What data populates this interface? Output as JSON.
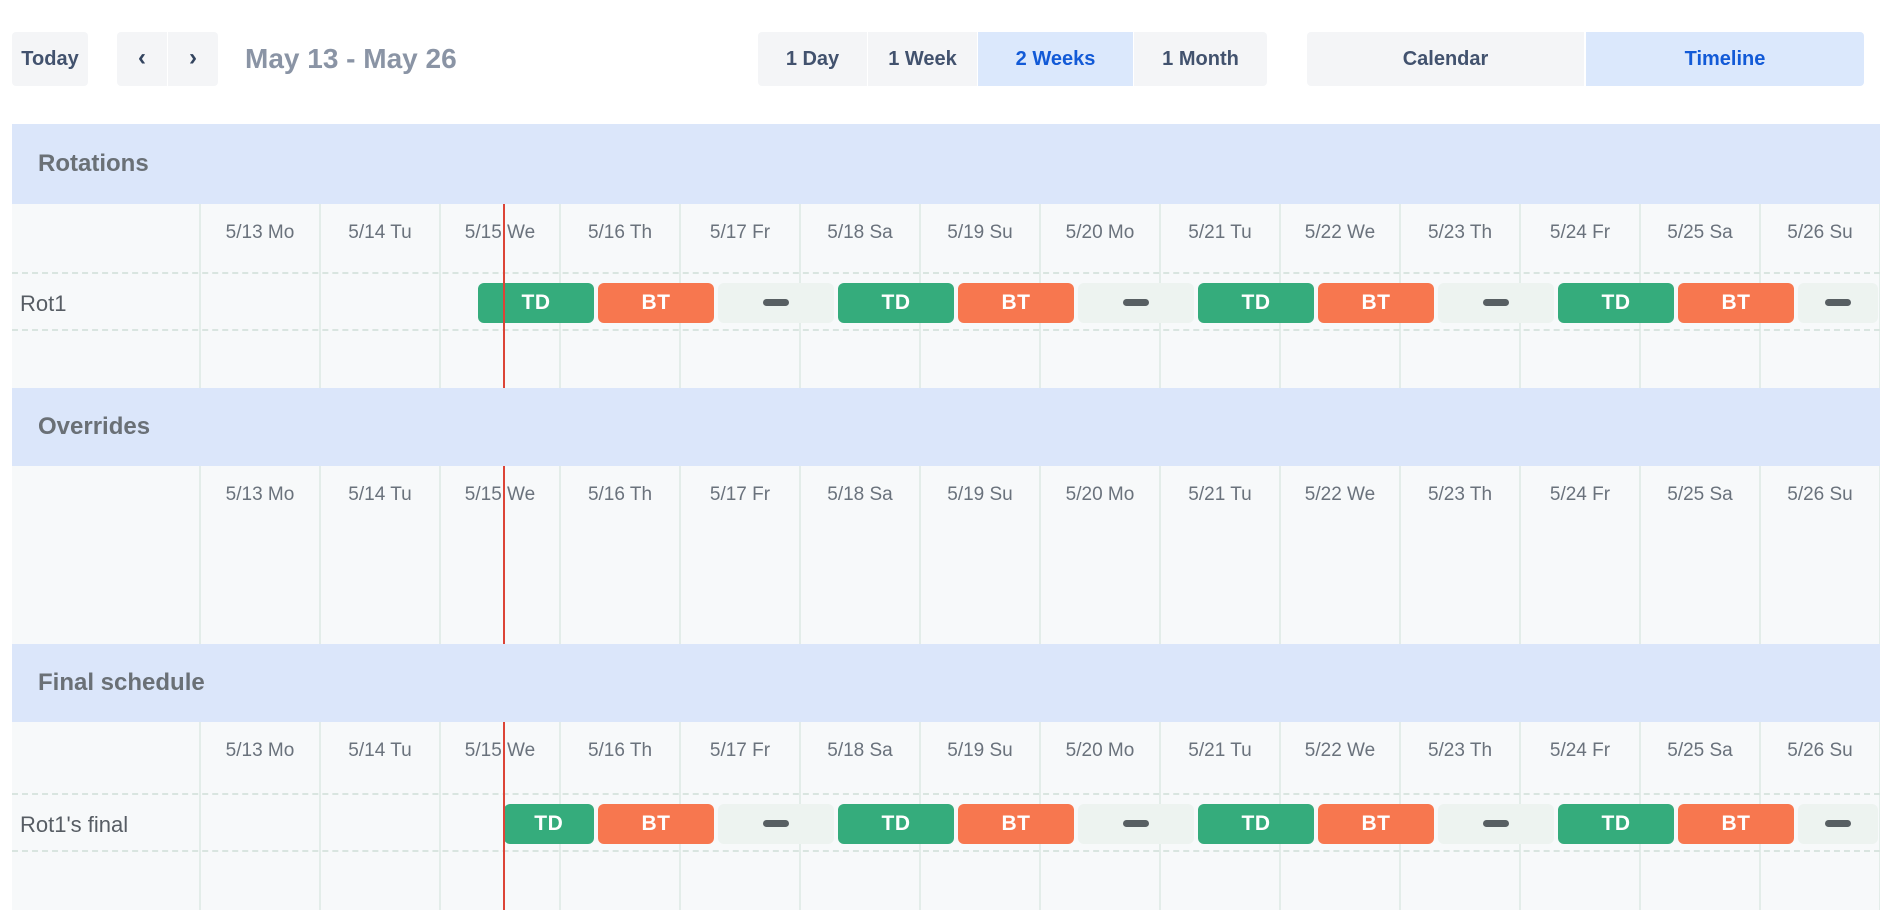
{
  "toolbar": {
    "today_label": "Today",
    "prev_icon": "‹",
    "next_icon": "›",
    "title": "May 13 - May 26",
    "view_options": [
      {
        "label": "1 Day",
        "selected": false
      },
      {
        "label": "1 Week",
        "selected": false
      },
      {
        "label": "2 Weeks",
        "selected": true
      },
      {
        "label": "1 Month",
        "selected": false
      }
    ],
    "mode_options": [
      {
        "label": "Calendar",
        "selected": false
      },
      {
        "label": "Timeline",
        "selected": true
      }
    ]
  },
  "timeline": {
    "day_labels": [
      "5/13 Mo",
      "5/14 Tu",
      "5/15 We",
      "5/16 Th",
      "5/17 Fr",
      "5/18 Sa",
      "5/19 Su",
      "5/20 Mo",
      "5/21 Tu",
      "5/22 We",
      "5/23 Th",
      "5/24 Fr",
      "5/25 Sa",
      "5/26 Su"
    ],
    "now_day_fraction": 2.53,
    "colors": {
      "td": "#35ac7c",
      "bt": "#f7774f",
      "gap_bg": "#edf3f0",
      "gap_dash": "#585f63",
      "now_line": "#dc4437",
      "section_band": "#dbe6fa",
      "selected_button_bg": "#dbe8fc",
      "selected_button_text": "#125ad7"
    },
    "sections": [
      {
        "title": "Rotations",
        "rows": [
          {
            "label": "Rot1",
            "bars": [
              {
                "kind": "td",
                "label": "TD",
                "start": 2.317,
                "end": 3.3
              },
              {
                "kind": "bt",
                "label": "BT",
                "start": 3.317,
                "end": 4.3
              },
              {
                "kind": "gap",
                "label": "",
                "start": 4.317,
                "end": 5.3
              },
              {
                "kind": "td",
                "label": "TD",
                "start": 5.317,
                "end": 6.3
              },
              {
                "kind": "bt",
                "label": "BT",
                "start": 6.317,
                "end": 7.3
              },
              {
                "kind": "gap",
                "label": "",
                "start": 7.317,
                "end": 8.3
              },
              {
                "kind": "td",
                "label": "TD",
                "start": 8.317,
                "end": 9.3
              },
              {
                "kind": "bt",
                "label": "BT",
                "start": 9.317,
                "end": 10.3
              },
              {
                "kind": "gap",
                "label": "",
                "start": 10.317,
                "end": 11.3
              },
              {
                "kind": "td",
                "label": "TD",
                "start": 11.317,
                "end": 12.3
              },
              {
                "kind": "bt",
                "label": "BT",
                "start": 12.317,
                "end": 13.3
              },
              {
                "kind": "gap",
                "label": "",
                "start": 13.317,
                "end": 14.0
              }
            ]
          }
        ]
      },
      {
        "title": "Overrides",
        "rows": []
      },
      {
        "title": "Final schedule",
        "rows": [
          {
            "label": "Rot1's final",
            "bars": [
              {
                "kind": "td",
                "label": "TD",
                "start": 2.53,
                "end": 3.3
              },
              {
                "kind": "bt",
                "label": "BT",
                "start": 3.317,
                "end": 4.3
              },
              {
                "kind": "gap",
                "label": "",
                "start": 4.317,
                "end": 5.3
              },
              {
                "kind": "td",
                "label": "TD",
                "start": 5.317,
                "end": 6.3
              },
              {
                "kind": "bt",
                "label": "BT",
                "start": 6.317,
                "end": 7.3
              },
              {
                "kind": "gap",
                "label": "",
                "start": 7.317,
                "end": 8.3
              },
              {
                "kind": "td",
                "label": "TD",
                "start": 8.317,
                "end": 9.3
              },
              {
                "kind": "bt",
                "label": "BT",
                "start": 9.317,
                "end": 10.3
              },
              {
                "kind": "gap",
                "label": "",
                "start": 10.317,
                "end": 11.3
              },
              {
                "kind": "td",
                "label": "TD",
                "start": 11.317,
                "end": 12.3
              },
              {
                "kind": "bt",
                "label": "BT",
                "start": 12.317,
                "end": 13.3
              },
              {
                "kind": "gap",
                "label": "",
                "start": 13.317,
                "end": 14.0
              }
            ]
          }
        ]
      }
    ]
  }
}
